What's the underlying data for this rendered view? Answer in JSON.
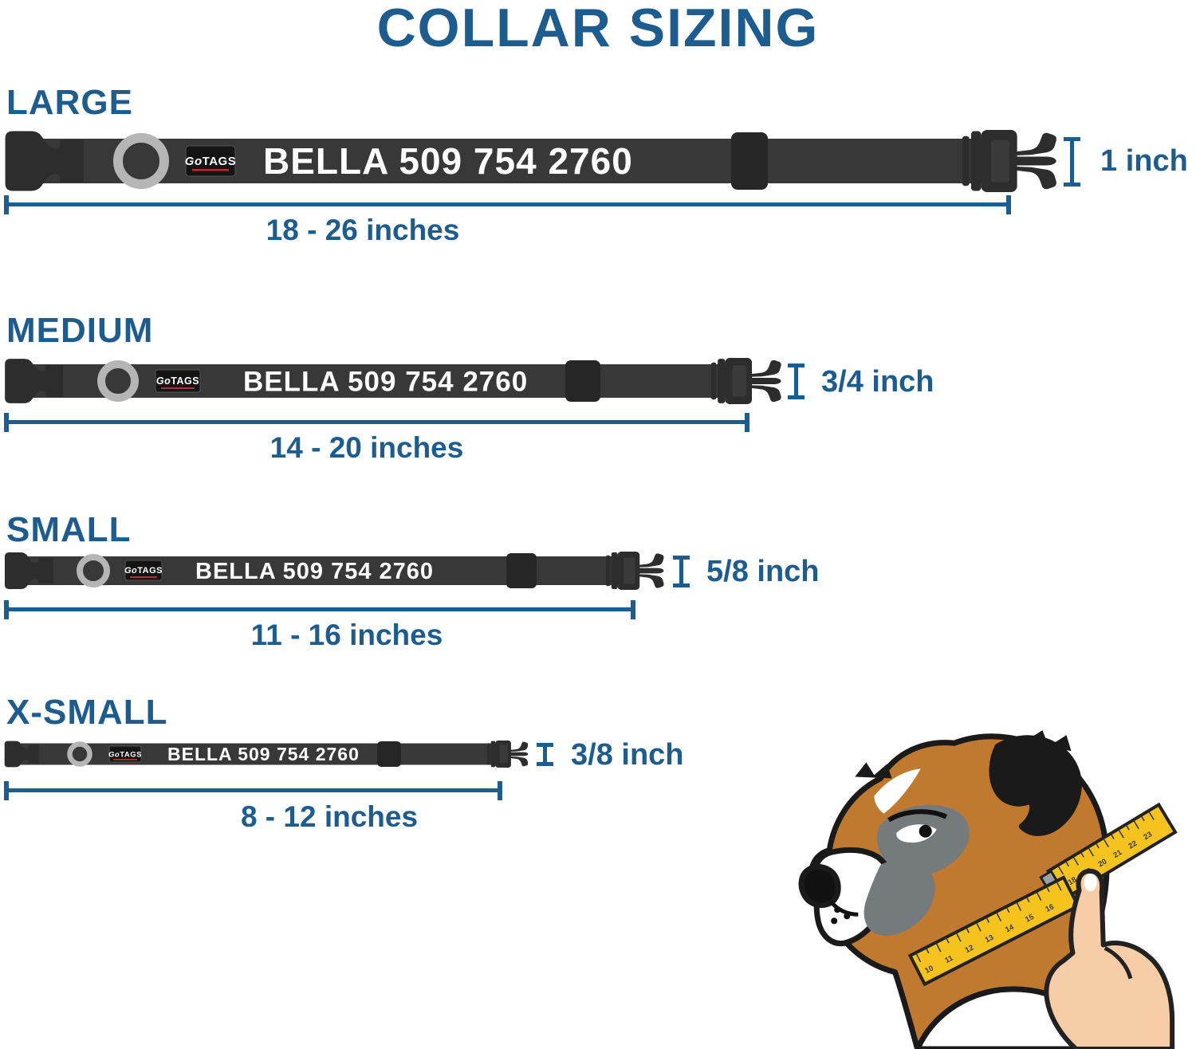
{
  "title": "COLLAR SIZING",
  "colors": {
    "accent": "#1d5c8e",
    "strap": "#383838",
    "buckle": "#2d2d2d",
    "slider": "#262626",
    "dring": "#b5b5b5",
    "patch": "#141414",
    "patch_underline": "#b03228",
    "collar_text": "#ffffff",
    "tape": "#f5c31d",
    "dog_brown": "#bf7a30",
    "dog_gray": "#757a7d",
    "dog_black": "#1a1a1a",
    "hand": "#f7cda8"
  },
  "brand": {
    "go": "Go",
    "tags": "TAGS"
  },
  "collar_text": "BELLA 509 754 2760",
  "sizes": [
    {
      "label": "LARGE",
      "width_label": "1 inch",
      "range_label": "18 - 26 inches"
    },
    {
      "label": "MEDIUM",
      "width_label": "3/4 inch",
      "range_label": "14 - 20 inches"
    },
    {
      "label": "SMALL",
      "width_label": "5/8 inch",
      "range_label": "11 - 16 inches"
    },
    {
      "label": "X-SMALL",
      "width_label": "3/8 inch",
      "range_label": "8 - 12 inches"
    }
  ],
  "dog": {
    "tape_wrap_numbers": [
      "10",
      "11",
      "12",
      "13",
      "14",
      "15",
      "16"
    ],
    "tape_end_numbers": [
      "18",
      "19",
      "20",
      "21",
      "22",
      "23"
    ]
  }
}
